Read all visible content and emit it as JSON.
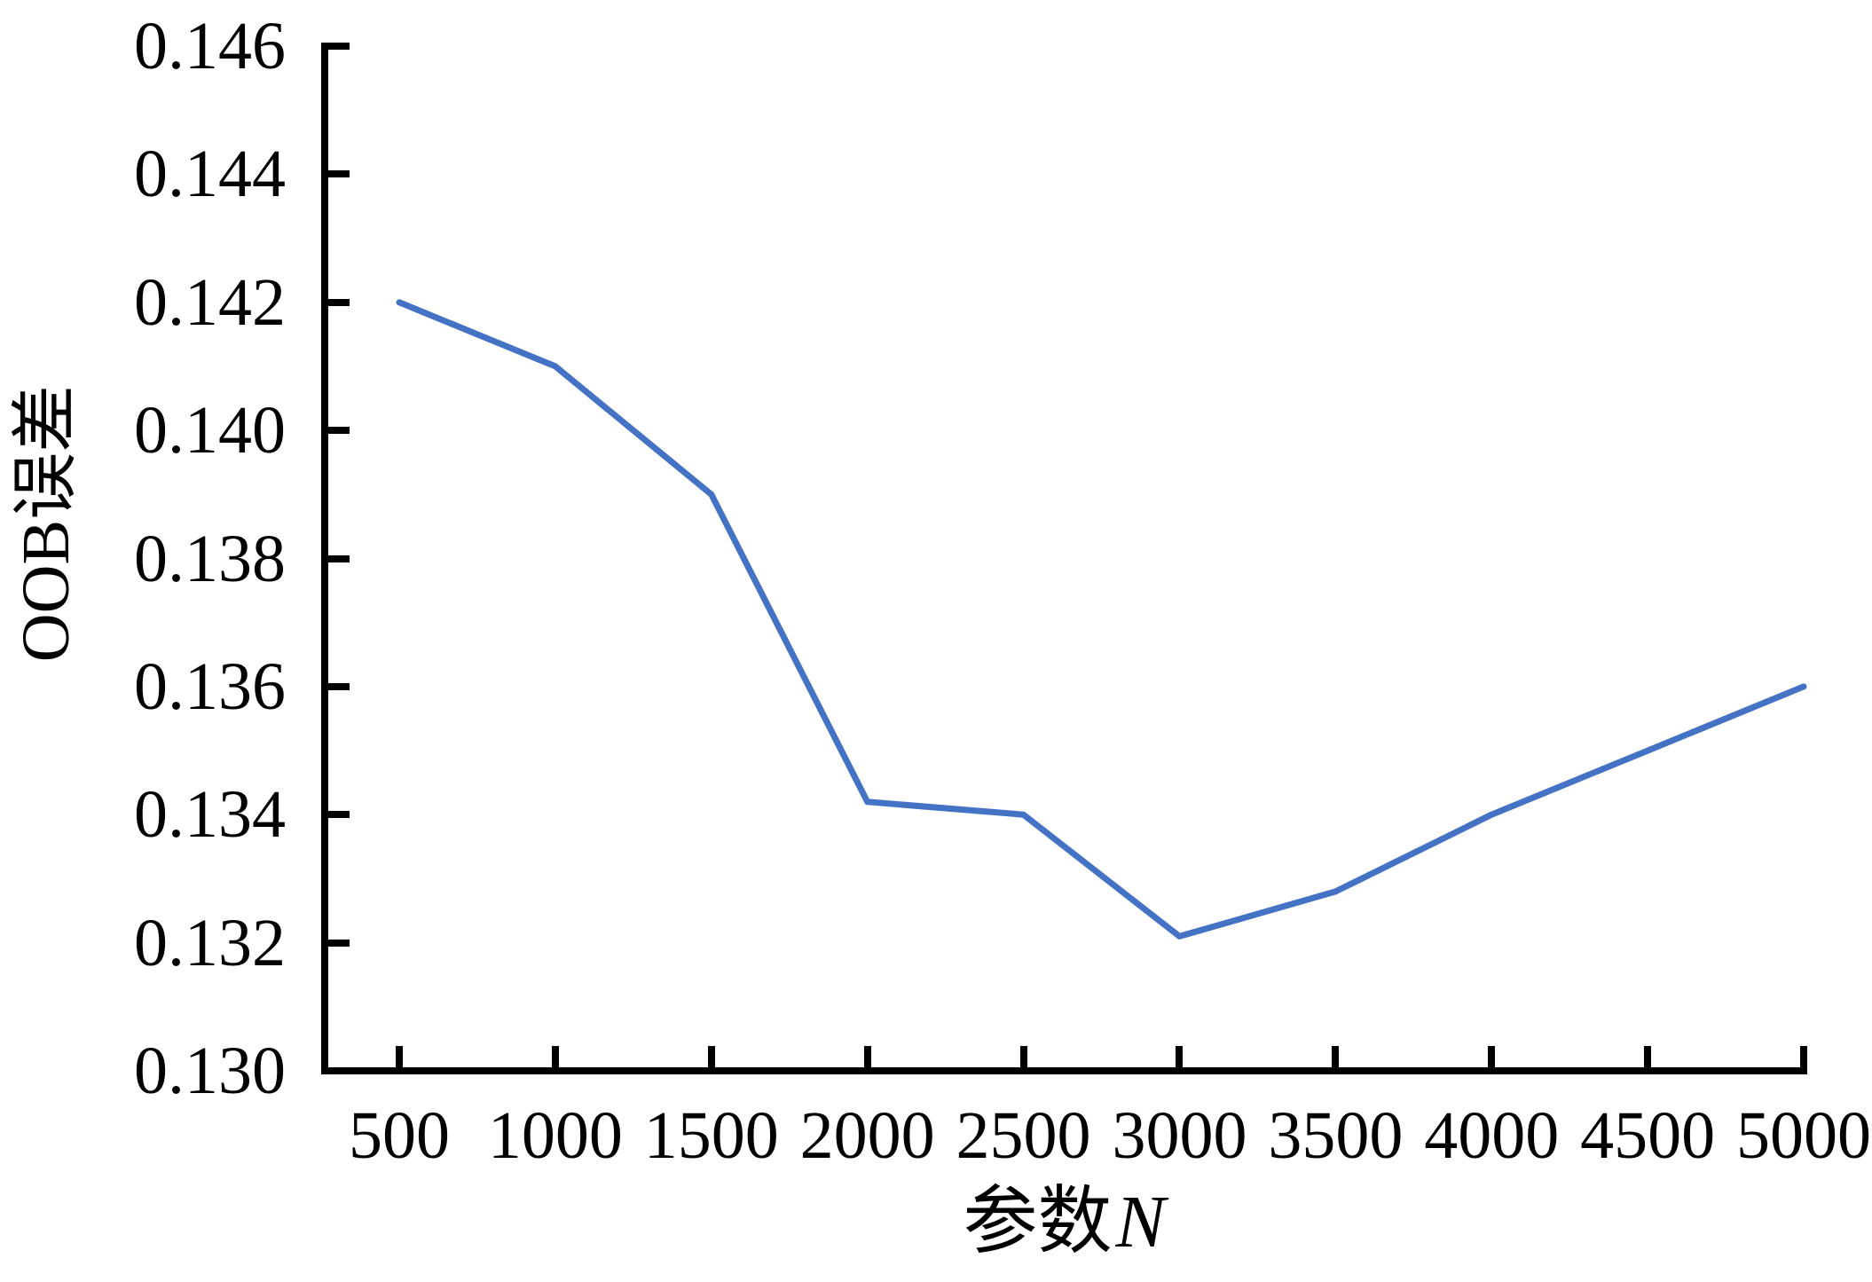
{
  "figure": {
    "ylabel": "OOB误差",
    "xlabel_prefix": "参数",
    "xlabel_variable": "N"
  },
  "chart_data": {
    "type": "line",
    "title": "",
    "xlabel": "参数N",
    "ylabel": "OOB误差",
    "x": [
      500,
      1000,
      1500,
      2000,
      2500,
      3000,
      3500,
      4000,
      4500,
      5000
    ],
    "values": [
      0.142,
      0.141,
      0.139,
      0.1342,
      0.134,
      0.1321,
      0.1328,
      0.134,
      0.135,
      0.136
    ],
    "series_name": "OOB误差",
    "xtick_labels": [
      "500",
      "1000",
      "1500",
      "2000",
      "2500",
      "3000",
      "3500",
      "4000",
      "4500",
      "5000"
    ],
    "ytick_labels": [
      "0.130",
      "0.132",
      "0.134",
      "0.136",
      "0.138",
      "0.140",
      "0.142",
      "0.144",
      "0.146"
    ],
    "xlim": [
      500,
      5000
    ],
    "ylim": [
      0.13,
      0.146
    ],
    "ytick_step": 0.002,
    "xtick_step": 500,
    "grid": false,
    "legend_position": "none",
    "markers": false,
    "line_color": "#4472C4",
    "axis_color": "#000000",
    "background_color": "#ffffff"
  }
}
